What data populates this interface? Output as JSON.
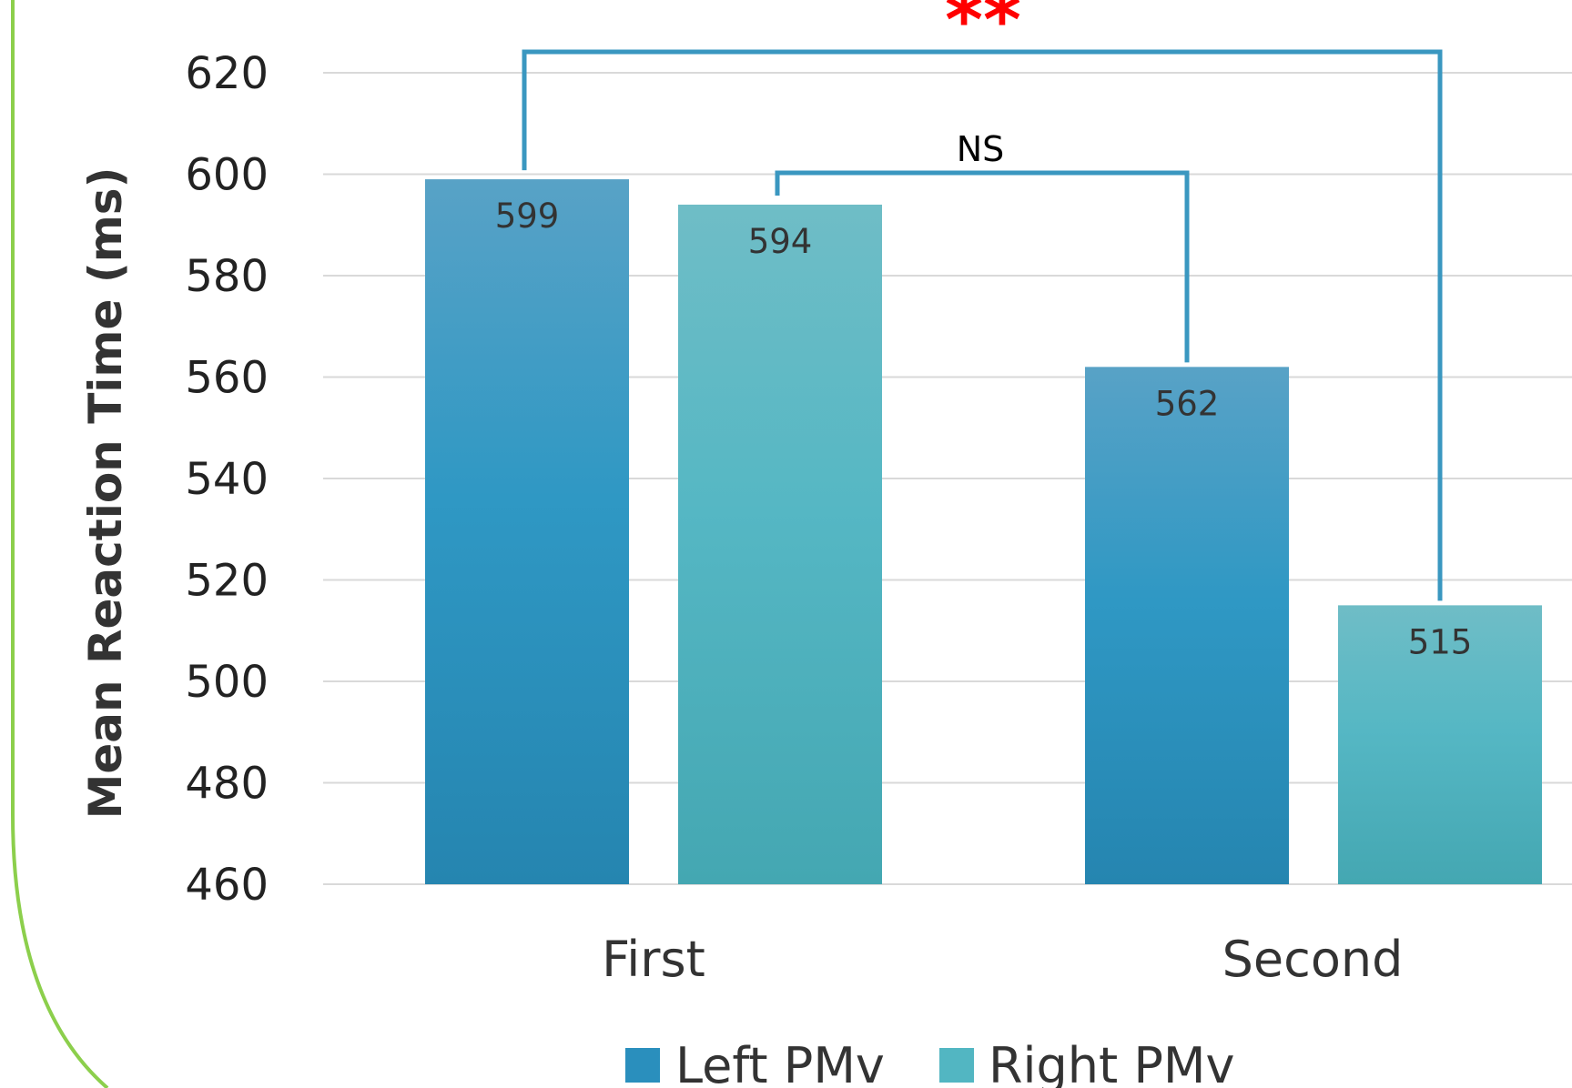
{
  "chart_data": {
    "type": "bar",
    "categories": [
      "First",
      "Second"
    ],
    "series": [
      {
        "name": "Left PMv",
        "values": [
          599,
          562
        ],
        "color": "#2a8fbd"
      },
      {
        "name": "Right PMv",
        "values": [
          594,
          515
        ],
        "color": "#52b6c2"
      }
    ],
    "ylabel": "Mean Reaction Time (ms)",
    "xlabel": "",
    "ylim": [
      460,
      620
    ],
    "yticks": [
      460,
      480,
      500,
      520,
      540,
      560,
      580,
      600,
      620
    ],
    "grid": true,
    "legend": "bottom",
    "annotations": [
      {
        "text": "NS",
        "between": [
          "First / Right PMv",
          "Second / Left PMv"
        ]
      },
      {
        "text": "**",
        "between": [
          "First / Left PMv",
          "Second / Right PMv"
        ],
        "color": "#ff0000"
      }
    ]
  },
  "colors": {
    "bracket": "#3a97c0",
    "border_accent": "#8ccf4c",
    "grid": "#d9d9d9"
  }
}
